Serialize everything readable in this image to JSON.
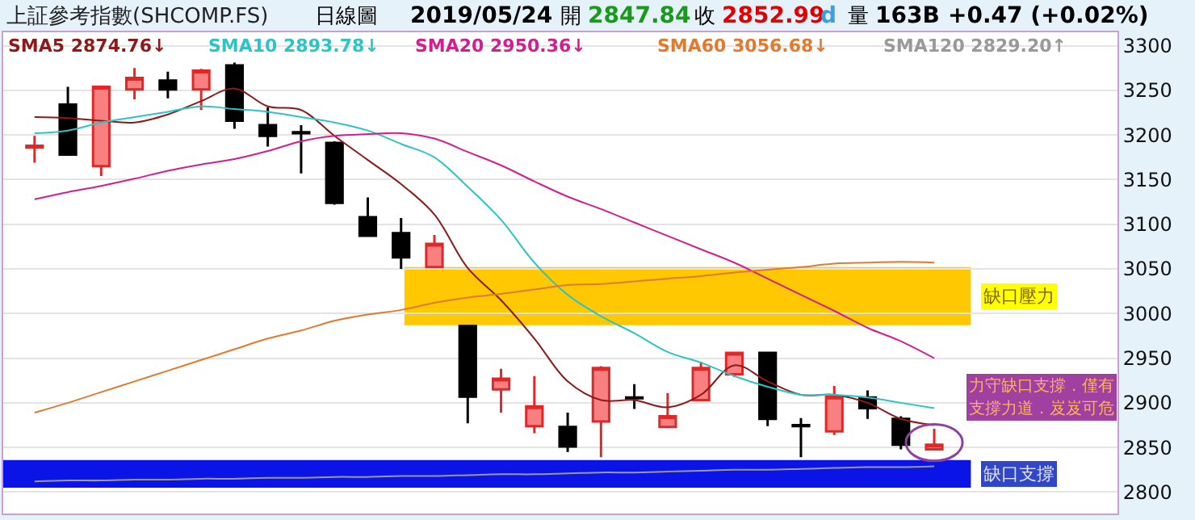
{
  "chart_data": {
    "type": "candlestick",
    "title": "上証參考指數(SHCOMP.FS)",
    "annotations": [
      "日線圖",
      "2019/05/24",
      "開",
      "2847.84",
      "收",
      "2852.99",
      "d",
      "量",
      "163B",
      "+0.47 (+0.02%)",
      "力守缺口支撐．僅有",
      "支撐力道．岌岌可危"
    ],
    "categories": [
      null,
      null,
      null,
      null,
      null,
      null,
      null,
      null,
      null,
      null,
      null,
      null,
      null,
      null,
      null,
      null,
      null,
      null,
      null,
      null,
      null,
      null,
      null,
      null,
      null,
      null,
      null,
      null
    ],
    "ohlc": [
      [
        3186,
        3199,
        3169,
        3188
      ],
      [
        3234,
        3254,
        3177,
        3178
      ],
      [
        3165,
        3254,
        3154,
        3254
      ],
      [
        3251,
        3275,
        3240,
        3264
      ],
      [
        3261,
        3271,
        3241,
        3251
      ],
      [
        3251,
        3274,
        3228,
        3272
      ],
      [
        3278,
        3281,
        3207,
        3216
      ],
      [
        3211,
        3231,
        3187,
        3199
      ],
      [
        3203,
        3211,
        3157,
        3202
      ],
      [
        3191,
        3193,
        3122,
        3124
      ],
      [
        3108,
        3130,
        3087,
        3087
      ],
      [
        3090,
        3107,
        3050,
        3063
      ],
      [
        3052,
        3088,
        3052,
        3078
      ],
      [
        2986,
        2987,
        2877,
        2907
      ],
      [
        2915,
        2938,
        2889,
        2927
      ],
      [
        2874,
        2930,
        2866,
        2896
      ],
      [
        2873,
        2889,
        2845,
        2851
      ],
      [
        2879,
        2941,
        2839,
        2939
      ],
      [
        2906,
        2921,
        2893,
        2905
      ],
      [
        2873,
        2911,
        2873,
        2885
      ],
      [
        2903,
        2946,
        2902,
        2939
      ],
      [
        2932,
        2956,
        2929,
        2956
      ],
      [
        2956,
        2957,
        2874,
        2882
      ],
      [
        2875,
        2883,
        2839,
        2874
      ],
      [
        2868,
        2919,
        2864,
        2907
      ],
      [
        2906,
        2914,
        2882,
        2894
      ],
      [
        2882,
        2885,
        2848,
        2853
      ],
      [
        2848,
        2871,
        2847,
        2853
      ]
    ],
    "series": [
      {
        "type": "line",
        "name": "SMA5 2874.76↓",
        "color": "#8b1a1a",
        "values": [
          3220,
          3219,
          3216,
          3214,
          3223,
          3238,
          3252,
          3232,
          3228,
          3199,
          3172,
          3145,
          3111,
          3051,
          3015,
          2972,
          2924,
          2903,
          2903,
          2895,
          2909,
          2942,
          2924,
          2909,
          2909,
          2900,
          2882,
          2875
        ]
      },
      {
        "type": "line",
        "name": "SMA10 2893.78↓",
        "color": "#2ec4c4",
        "values": [
          3202,
          3205,
          3214,
          3220,
          3226,
          3232,
          3229,
          3226,
          3220,
          3214,
          3205,
          3190,
          3175,
          3142,
          3105,
          3057,
          3021,
          2997,
          2978,
          2957,
          2945,
          2930,
          2918,
          2909,
          2909,
          2906,
          2900,
          2894
        ]
      },
      {
        "type": "line",
        "name": "SMA20 2950.36↓",
        "color": "#d0208f",
        "values": [
          3128,
          3136,
          3143,
          3151,
          3160,
          3167,
          3173,
          3182,
          3193,
          3199,
          3201,
          3202,
          3196,
          3181,
          3166,
          3148,
          3131,
          3117,
          3102,
          3087,
          3072,
          3057,
          3039,
          3021,
          3003,
          2984,
          2969,
          2950
        ]
      },
      {
        "type": "line",
        "name": "SMA60 3056.68↓",
        "color": "#e07a30",
        "values": [
          2889,
          2900,
          2912,
          2924,
          2936,
          2948,
          2960,
          2972,
          2981,
          2992,
          2999,
          3004,
          3012,
          3018,
          3022,
          3027,
          3032,
          3033,
          3036,
          3039,
          3042,
          3046,
          3049,
          3052,
          3056,
          3057,
          3058,
          3057
        ]
      },
      {
        "type": "line",
        "name": "SMA120 2829.20↑",
        "color": "#999999",
        "values": [
          2812,
          2813,
          2813,
          2814,
          2814,
          2815,
          2815,
          2816,
          2816,
          2817,
          2817,
          2818,
          2818,
          2819,
          2820,
          2820,
          2821,
          2822,
          2822,
          2823,
          2824,
          2825,
          2825,
          2826,
          2827,
          2828,
          2828,
          2829
        ]
      }
    ],
    "bands": [
      {
        "axis": "y",
        "from": 2987,
        "to": 3052,
        "label": "缺口壓力",
        "color": "#ffc800"
      },
      {
        "axis": "y",
        "from": 2805,
        "to": 2836,
        "label": "缺口支撐",
        "color": "#0a14e6"
      }
    ],
    "ylim": [
      2776,
      3315
    ],
    "yticks": [
      2800,
      2850,
      2900,
      2950,
      3000,
      3050,
      3100,
      3150,
      3200,
      3250,
      3300
    ],
    "grid": "y",
    "legend": "top",
    "tick_labels": "y"
  }
}
